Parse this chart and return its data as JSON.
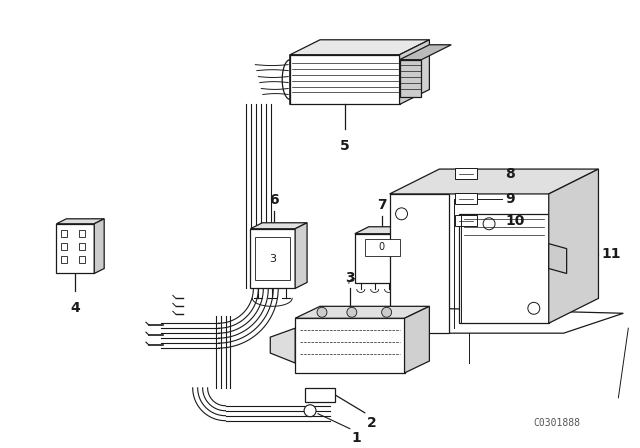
{
  "background_color": "#ffffff",
  "line_color": "#1a1a1a",
  "watermark": "C0301888",
  "figsize": [
    6.4,
    4.48
  ],
  "dpi": 100
}
